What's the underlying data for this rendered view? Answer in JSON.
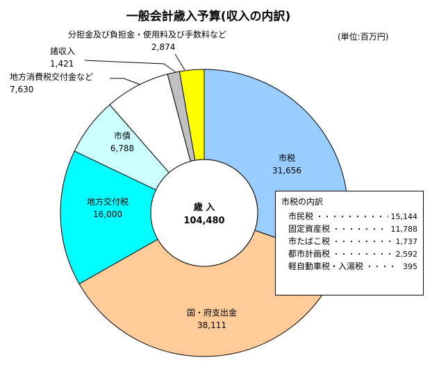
{
  "title": "一般会計歳入予算(収入の内訳)",
  "unit_label": "(単位:百万円)",
  "chart_data": {
    "type": "pie",
    "variant": "donut",
    "center_label": "歳 入",
    "total": "104,480",
    "slices": [
      {
        "name": "市税",
        "value": 31656,
        "value_label": "31,656",
        "color": "#99ccff"
      },
      {
        "name": "国・府支出金",
        "value": 38111,
        "value_label": "38,111",
        "color": "#ffcc99"
      },
      {
        "name": "地方交付税",
        "value": 16000,
        "value_label": "16,000",
        "color": "#00ffff"
      },
      {
        "name": "市債",
        "value": 6788,
        "value_label": "6,788",
        "color": "#ccffff"
      },
      {
        "name": "地方消費税交付金など",
        "value": 7630,
        "value_label": "7,630",
        "color": "#ffffff"
      },
      {
        "name": "諸収入",
        "value": 1421,
        "value_label": "1,421",
        "color": "#c0c0c0"
      },
      {
        "name": "分担金及び負担金・使用料及び手数料など",
        "value": 2874,
        "value_label": "2,874",
        "color": "#ffff00"
      }
    ],
    "breakdown": {
      "title": "市税の内訳",
      "items": [
        {
          "name": "市民税",
          "dots": "・・・・・・・・・・・・・",
          "value": "15,144"
        },
        {
          "name": "固定資産税",
          "dots": "・・・・・・・・・",
          "value": "11,788"
        },
        {
          "name": "市たばこ税",
          "dots": "・・・・・・・・・・",
          "value": "1,737"
        },
        {
          "name": "都市計画税",
          "dots": "・・・・・・・・・",
          "value": "2,592"
        },
        {
          "name": "軽自動車税・入湯税",
          "dots": "・・・・",
          "value": "395"
        }
      ]
    }
  }
}
